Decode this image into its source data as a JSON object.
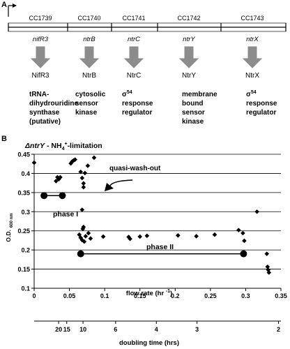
{
  "panel_a": {
    "label": "A",
    "genes": [
      {
        "locus": "CC1739",
        "gene": "nifR3",
        "protein": "NifR3",
        "description": [
          "tRNA-",
          "dihydrouridine",
          "synthase",
          "(putative)"
        ]
      },
      {
        "locus": "CC1740",
        "gene": "ntrB",
        "protein": "NtrB",
        "description": [
          "cytosolic",
          "sensor",
          "kinase"
        ]
      },
      {
        "locus": "CC1741",
        "gene": "ntrC",
        "protein": "NtrC",
        "description": [
          "σ54",
          "response",
          "regulator"
        ]
      },
      {
        "locus": "CC1742",
        "gene": "ntrY",
        "protein": "NtrY",
        "description": [
          "membrane",
          "bound",
          "sensor",
          "kinase"
        ]
      },
      {
        "locus": "CC1743",
        "gene": "ntrX",
        "protein": "NtrX",
        "description": [
          "σ54",
          "response",
          "regulator"
        ]
      }
    ]
  },
  "panel_b": {
    "label": "B",
    "title_gene": "ΔntrY",
    "title_rest": " - NH",
    "title_sub": "4",
    "title_sup": "+",
    "title_end": "-limitation",
    "annotation_washout": "quasi-wash-out",
    "annotation_phase1": "phase I",
    "annotation_phase2": "phase II",
    "ylabel_main": "O.D.",
    "ylabel_sub": "600 nm",
    "xlabel": "flow rate (hr ",
    "xlabel_sup": "-1",
    "xlabel_end": ")",
    "x2label": "doubling time (hrs)"
  },
  "chart_data": {
    "type": "scatter",
    "xlim": [
      0,
      0.35
    ],
    "ylim": [
      0.1,
      0.45
    ],
    "xticks": [
      "0",
      "0.05",
      "0.1",
      "0.15",
      "0.2",
      "0.25",
      "0.3",
      "0.35"
    ],
    "yticks": [
      "0.1",
      "0.15",
      "0.2",
      "0.25",
      "0.3",
      "0.35",
      "0.4",
      "0.45"
    ],
    "grid": "horizontal",
    "x2ticks": [
      "20",
      "15",
      "10",
      "6",
      "4",
      "3",
      "2"
    ],
    "x2tick_rates": [
      0.0347,
      0.0462,
      0.0693,
      0.1155,
      0.1733,
      0.231,
      0.3466
    ],
    "points": [
      [
        0.0,
        0.428
      ],
      [
        0.031,
        0.38
      ],
      [
        0.033,
        0.39
      ],
      [
        0.035,
        0.385
      ],
      [
        0.037,
        0.39
      ],
      [
        0.052,
        0.426
      ],
      [
        0.054,
        0.431
      ],
      [
        0.056,
        0.434
      ],
      [
        0.058,
        0.436
      ],
      [
        0.066,
        0.404
      ],
      [
        0.068,
        0.388
      ],
      [
        0.07,
        0.374
      ],
      [
        0.07,
        0.364
      ],
      [
        0.072,
        0.401
      ],
      [
        0.076,
        0.42
      ],
      [
        0.085,
        0.441
      ],
      [
        0.068,
        0.305
      ],
      [
        0.064,
        0.24
      ],
      [
        0.066,
        0.232
      ],
      [
        0.068,
        0.226
      ],
      [
        0.069,
        0.255
      ],
      [
        0.07,
        0.26
      ],
      [
        0.071,
        0.222
      ],
      [
        0.073,
        0.236
      ],
      [
        0.077,
        0.244
      ],
      [
        0.08,
        0.23
      ],
      [
        0.098,
        0.235
      ],
      [
        0.134,
        0.234
      ],
      [
        0.136,
        0.229
      ],
      [
        0.15,
        0.235
      ],
      [
        0.16,
        0.237
      ],
      [
        0.204,
        0.238
      ],
      [
        0.23,
        0.236
      ],
      [
        0.256,
        0.24
      ],
      [
        0.29,
        0.252
      ],
      [
        0.296,
        0.244
      ],
      [
        0.298,
        0.224
      ],
      [
        0.316,
        0.3
      ],
      [
        0.33,
        0.19
      ],
      [
        0.331,
        0.156
      ],
      [
        0.332,
        0.148
      ],
      [
        0.333,
        0.141
      ]
    ],
    "phase1": {
      "x_start": 0.014,
      "x_end": 0.04,
      "y": 0.342
    },
    "phase2": {
      "x_start": 0.066,
      "x_end": 0.297,
      "y": 0.19
    }
  }
}
